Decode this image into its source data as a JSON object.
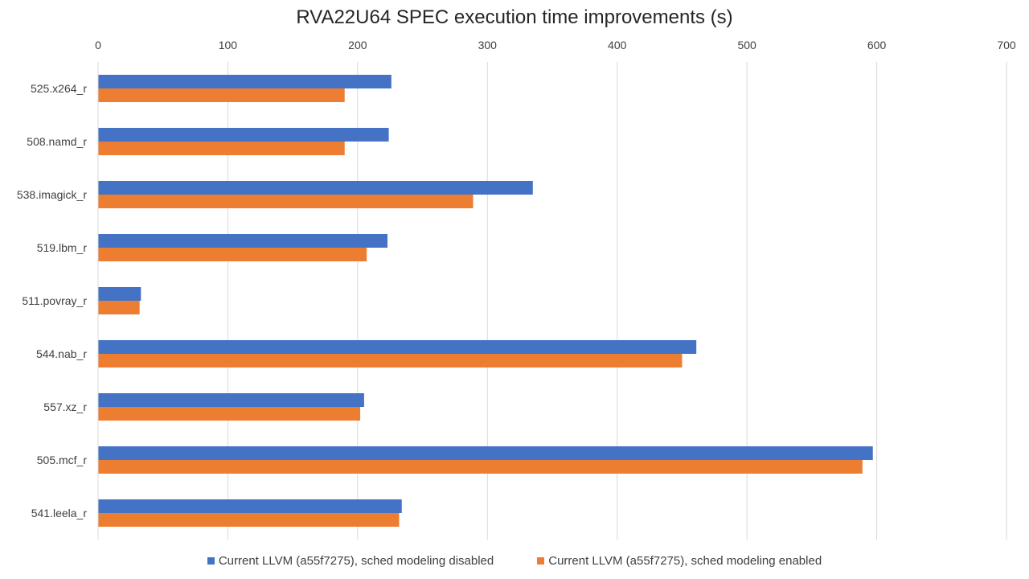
{
  "chart_data": {
    "type": "bar",
    "orientation": "horizontal",
    "title": "RVA22U64 SPEC execution time improvements (s)",
    "categories": [
      "525.x264_r",
      "508.namd_r",
      "538.imagick_r",
      "519.lbm_r",
      "511.povray_r",
      "544.nab_r",
      "557.xz_r",
      "505.mcf_r",
      "541.leela_r"
    ],
    "series": [
      {
        "name": "Current LLVM (a55f7275), sched modeling disabled",
        "color": "#4472C4",
        "values": [
          226,
          224,
          335,
          223,
          33,
          461,
          205,
          597,
          234
        ]
      },
      {
        "name": "Current LLVM (a55f7275), sched modeling enabled",
        "color": "#ED7D31",
        "values": [
          190,
          190,
          289,
          207,
          32,
          450,
          202,
          589,
          232
        ]
      }
    ],
    "xlim": [
      0,
      700
    ],
    "x_ticks": [
      "0",
      "100",
      "200",
      "300",
      "400",
      "500",
      "600",
      "700"
    ],
    "grid": true,
    "axis_position": "top",
    "legend_position": "bottom"
  }
}
